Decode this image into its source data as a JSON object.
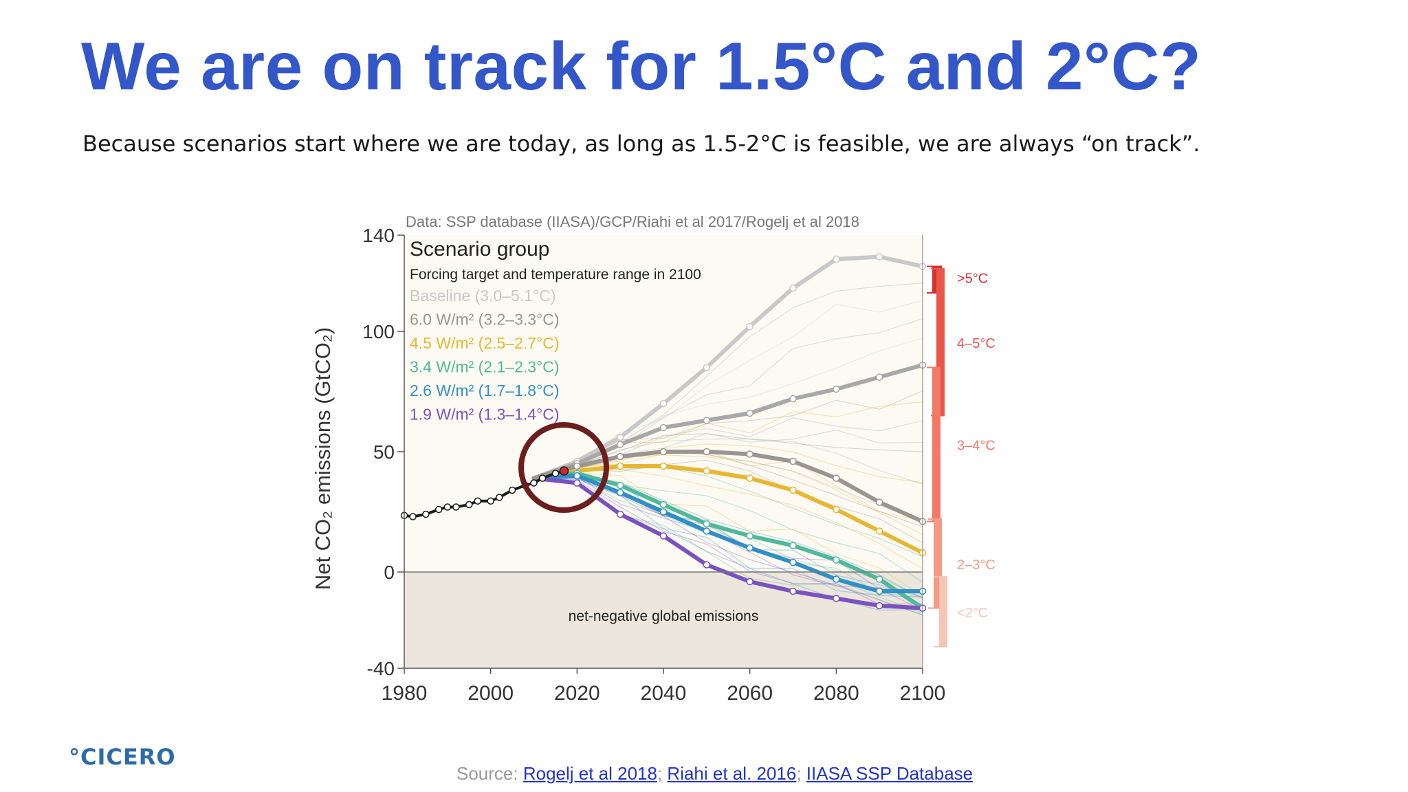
{
  "slide": {
    "title": "We are on track for 1.5°C and 2°C?",
    "subtitle": "Because scenarios start where we are today, as long as 1.5-2°C is feasible, we are always “on track”."
  },
  "logo": "°CICERO",
  "source": {
    "label": "Source: ",
    "links": [
      "Rogelj et al 2018",
      "Riahi et al. 2016",
      "IIASA SSP Database"
    ],
    "separator": "; "
  },
  "colors": {
    "historical": "#1a1a1a",
    "highlight_circle": "#6b1e1e",
    "negative_region": "#ece6dc",
    "plot_background": "#fcfaf3"
  },
  "chart_data": {
    "type": "line",
    "data_credit": "Data: SSP database (IIASA)/GCP/Riahi et al 2017/Rogelj et al 2018",
    "ylabel": "Net CO₂ emissions (GtCO₂)",
    "xlim": [
      1980,
      2100
    ],
    "ylim": [
      -40,
      140
    ],
    "x_ticks": [
      1980,
      2000,
      2020,
      2040,
      2060,
      2080,
      2100
    ],
    "y_ticks": [
      -40,
      0,
      50,
      100,
      140
    ],
    "legend": {
      "title": "Scenario group",
      "subtitle": "Forcing target and temperature range in 2100",
      "position": "top-left"
    },
    "annotation": "net-negative global emissions",
    "historical": {
      "x": [
        1980,
        1982,
        1985,
        1988,
        1990,
        1992,
        1995,
        1997,
        2000,
        2002,
        2005,
        2008,
        2010,
        2012,
        2015,
        2017
      ],
      "y": [
        23.5,
        23,
        24,
        26,
        27,
        27,
        28,
        29.5,
        29.5,
        31,
        34,
        36,
        37,
        39,
        41,
        42
      ]
    },
    "series": [
      {
        "name": "Baseline (3.0–5.1°C)",
        "color": "#c8c8c8",
        "x": [
          2010,
          2020,
          2030,
          2040,
          2050,
          2060,
          2070,
          2080,
          2090,
          2100
        ],
        "y": [
          39,
          46,
          56,
          70,
          85,
          102,
          118,
          130,
          131,
          127
        ]
      },
      {
        "name": "6.0 W/m² (3.2–3.3°C)",
        "color": "#a8a8a8",
        "x": [
          2010,
          2020,
          2030,
          2040,
          2050,
          2060,
          2070,
          2080,
          2090,
          2100
        ],
        "y": [
          39,
          45,
          53,
          60,
          63,
          66,
          72,
          76,
          81,
          86
        ]
      },
      {
        "name": "4.5 W/m² (2.5–2.7°C)",
        "color": "#e8b630",
        "x": [
          2010,
          2020,
          2030,
          2040,
          2050,
          2060,
          2070,
          2080,
          2090,
          2100
        ],
        "y": [
          39,
          42,
          44,
          44,
          42,
          39,
          34,
          26,
          17,
          8
        ]
      },
      {
        "name": "3.4 W/m² (2.1–2.3°C)",
        "color": "#4fb99b",
        "x": [
          2010,
          2020,
          2030,
          2040,
          2050,
          2060,
          2070,
          2080,
          2090,
          2100
        ],
        "y": [
          39,
          41,
          36,
          28,
          20,
          15,
          11,
          5,
          -3,
          -15
        ]
      },
      {
        "name": "2.6 W/m² (1.7–1.8°C)",
        "color": "#2f8fc7",
        "x": [
          2010,
          2020,
          2030,
          2040,
          2050,
          2060,
          2070,
          2080,
          2090,
          2100
        ],
        "y": [
          39,
          40,
          33,
          25,
          17,
          10,
          4,
          -3,
          -8,
          -8
        ]
      },
      {
        "name": "1.9 W/m² (1.3–1.4°C)",
        "color": "#7a52c0",
        "x": [
          2010,
          2020,
          2030,
          2040,
          2050,
          2060,
          2070,
          2080,
          2090,
          2100
        ],
        "y": [
          39,
          37,
          24,
          15,
          3,
          -4,
          -8,
          -11,
          -14,
          -15
        ]
      },
      {
        "name": "",
        "color": "#9a9590",
        "x": [
          2010,
          2020,
          2030,
          2040,
          2050,
          2060,
          2070,
          2080,
          2090,
          2100
        ],
        "y": [
          39,
          44,
          48,
          50,
          50,
          49,
          46,
          39,
          29,
          21
        ]
      }
    ],
    "temperature_bands": [
      {
        "label": ">5°C",
        "y_range": [
          116,
          127
        ],
        "color": "#d7312e"
      },
      {
        "label": "4–5°C",
        "y_range": [
          65,
          126
        ],
        "color": "#e8574a"
      },
      {
        "label": "3–4°C",
        "y_range": [
          21,
          85
        ],
        "color": "#f07a65"
      },
      {
        "label": "2–3°C",
        "y_range": [
          -15,
          22
        ],
        "color": "#f49a84"
      },
      {
        "label": "<2°C",
        "y_range": [
          -31,
          -2
        ],
        "color": "#f8c4b4"
      }
    ]
  }
}
